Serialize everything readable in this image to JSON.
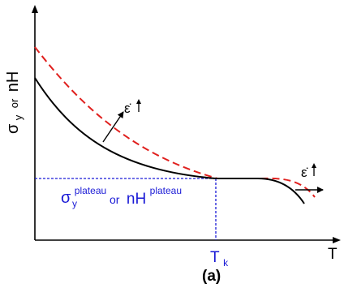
{
  "y_axis_label": {
    "main": "σ",
    "sub": "y",
    "or": "or",
    "alt": "nH"
  },
  "x_axis_label": "T",
  "transition_label": {
    "main": "T",
    "sub": "k"
  },
  "plateau_label": {
    "sigma": "σ",
    "sigma_sub": "y",
    "sigma_sup": "plateau",
    "or": "or",
    "nh": "nH",
    "nh_sup": "plateau"
  },
  "strain_rate_symbol": "ε̇",
  "figure_label": "(a)",
  "colors": {
    "axis": "#000000",
    "base_curve": "#000000",
    "high_rate_curve": "#e0201e",
    "guide_lines": "#1a1ad6",
    "plateau_text": "#1a1ad6"
  }
}
